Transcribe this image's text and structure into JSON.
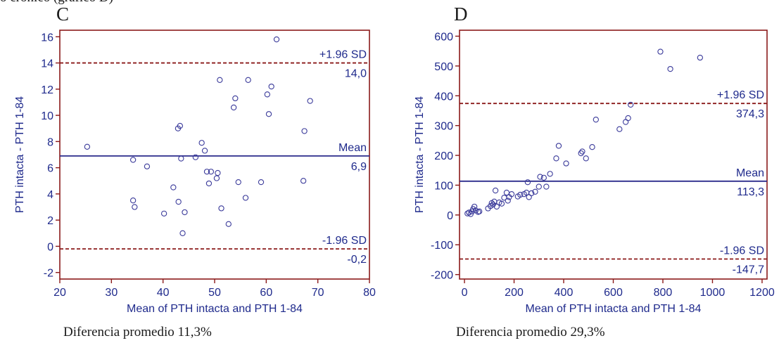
{
  "header_text": "o crónico (gráfico D)",
  "colors": {
    "axis": "#8b1a1a",
    "mean_line": "#2b2b8c",
    "limit_line": "#8b1a1a",
    "text_blue": "#1f2a8c",
    "point": "#3a3a9a"
  },
  "panels": [
    {
      "letter": "C",
      "caption": "Diferencia promedio 11,3%"
    },
    {
      "letter": "D",
      "caption": "Diferencia promedio 29,3%"
    }
  ],
  "chart_data": [
    {
      "type": "scatter",
      "xlabel": "Mean of PTH intacta and PTH 1-84",
      "ylabel": "PTH intacta - PTH 1-84",
      "xlim": [
        20,
        80
      ],
      "ylim": [
        -2.5,
        16.5
      ],
      "xticks": [
        20,
        30,
        40,
        50,
        60,
        70,
        80
      ],
      "yticks": [
        -2,
        0,
        2,
        4,
        6,
        8,
        10,
        12,
        14,
        16
      ],
      "lines": [
        {
          "name": "+1.96 SD",
          "value_label": "14,0",
          "y": 14.0,
          "style": "dashed"
        },
        {
          "name": "Mean",
          "value_label": "6,9",
          "y": 6.9,
          "style": "solid"
        },
        {
          "name": "-1.96 SD",
          "value_label": "-0,2",
          "y": -0.2,
          "style": "dashed"
        }
      ],
      "points": [
        [
          25.3,
          7.6
        ],
        [
          34.2,
          6.6
        ],
        [
          34.2,
          3.5
        ],
        [
          34.5,
          3.0
        ],
        [
          36.9,
          6.1
        ],
        [
          40.2,
          2.5
        ],
        [
          42.0,
          4.5
        ],
        [
          42.9,
          9.0
        ],
        [
          43.3,
          9.2
        ],
        [
          43.0,
          3.4
        ],
        [
          43.5,
          6.7
        ],
        [
          43.8,
          1.0
        ],
        [
          44.2,
          2.6
        ],
        [
          46.3,
          6.8
        ],
        [
          47.5,
          7.9
        ],
        [
          48.1,
          7.3
        ],
        [
          48.5,
          5.7
        ],
        [
          48.9,
          4.8
        ],
        [
          49.3,
          5.7
        ],
        [
          50.4,
          5.2
        ],
        [
          50.6,
          5.6
        ],
        [
          51.0,
          12.7
        ],
        [
          51.3,
          2.9
        ],
        [
          52.7,
          1.7
        ],
        [
          53.7,
          10.6
        ],
        [
          54.0,
          11.3
        ],
        [
          54.6,
          4.9
        ],
        [
          56.0,
          3.7
        ],
        [
          56.5,
          12.7
        ],
        [
          59.0,
          4.9
        ],
        [
          60.2,
          11.6
        ],
        [
          60.5,
          10.1
        ],
        [
          61.0,
          12.2
        ],
        [
          62.0,
          15.8
        ],
        [
          67.2,
          5.0
        ],
        [
          67.4,
          8.8
        ],
        [
          68.5,
          11.1
        ]
      ]
    },
    {
      "type": "scatter",
      "xlabel": "Mean of PTH intacta and PTH 1-84",
      "ylabel": "PTH intacta - PTH 1-84",
      "xlim": [
        -20,
        1220
      ],
      "ylim": [
        -215,
        620
      ],
      "xticks": [
        0,
        200,
        400,
        600,
        800,
        1000,
        1200
      ],
      "yticks": [
        -200,
        -100,
        0,
        100,
        200,
        300,
        400,
        500,
        600
      ],
      "lines": [
        {
          "name": "+1.96 SD",
          "value_label": "374,3",
          "y": 374.3,
          "style": "dashed"
        },
        {
          "name": "Mean",
          "value_label": "113,3",
          "y": 113.3,
          "style": "solid"
        },
        {
          "name": "-1.96 SD",
          "value_label": "-147,7",
          "y": -147.7,
          "style": "dashed"
        }
      ],
      "points": [
        [
          12,
          5
        ],
        [
          18,
          8
        ],
        [
          25,
          3
        ],
        [
          30,
          12
        ],
        [
          35,
          20
        ],
        [
          40,
          28
        ],
        [
          45,
          15
        ],
        [
          55,
          10
        ],
        [
          60,
          12
        ],
        [
          95,
          22
        ],
        [
          105,
          30
        ],
        [
          110,
          40
        ],
        [
          115,
          35
        ],
        [
          120,
          45
        ],
        [
          125,
          82
        ],
        [
          130,
          28
        ],
        [
          140,
          42
        ],
        [
          150,
          38
        ],
        [
          160,
          58
        ],
        [
          170,
          75
        ],
        [
          175,
          48
        ],
        [
          180,
          60
        ],
        [
          190,
          70
        ],
        [
          215,
          62
        ],
        [
          225,
          68
        ],
        [
          240,
          70
        ],
        [
          250,
          75
        ],
        [
          255,
          110
        ],
        [
          260,
          60
        ],
        [
          270,
          73
        ],
        [
          285,
          78
        ],
        [
          300,
          95
        ],
        [
          305,
          128
        ],
        [
          320,
          125
        ],
        [
          330,
          95
        ],
        [
          345,
          138
        ],
        [
          370,
          190
        ],
        [
          380,
          232
        ],
        [
          410,
          173
        ],
        [
          470,
          207
        ],
        [
          475,
          213
        ],
        [
          490,
          190
        ],
        [
          515,
          228
        ],
        [
          530,
          320
        ],
        [
          625,
          288
        ],
        [
          650,
          312
        ],
        [
          660,
          325
        ],
        [
          670,
          370
        ],
        [
          790,
          548
        ],
        [
          830,
          490
        ],
        [
          950,
          528
        ]
      ]
    }
  ]
}
